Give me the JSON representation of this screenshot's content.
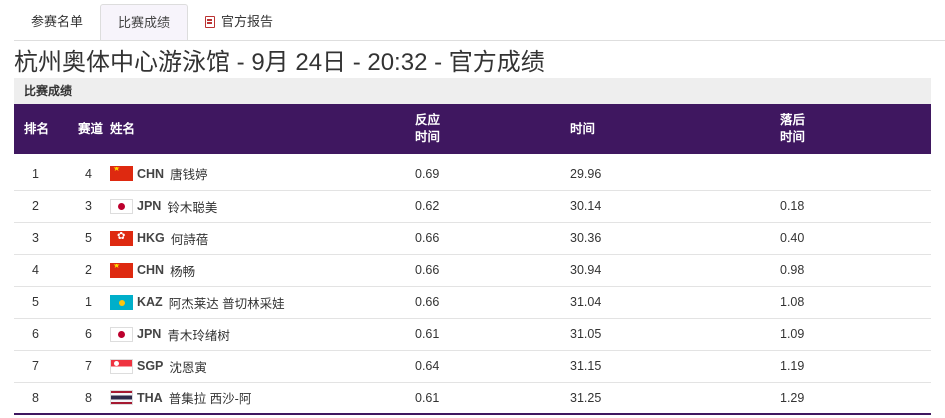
{
  "tabs": [
    {
      "label": "参赛名单",
      "active": false
    },
    {
      "label": "比赛成绩",
      "active": true
    },
    {
      "label": "官方报告",
      "active": false,
      "icon": "document-icon"
    }
  ],
  "page_title": "杭州奥体中心游泳馆 - 9月 24日 - 20:32 - 官方成绩",
  "section_label": "比赛成绩",
  "table": {
    "headers": {
      "rank": "排名",
      "lane": "赛道",
      "name": "姓名",
      "reaction_line1": "反应",
      "reaction_line2": "时间",
      "time": "时间",
      "behind_line1": "落后",
      "behind_line2": "时间"
    },
    "rows": [
      {
        "rank": "1",
        "lane": "4",
        "noc": "CHN",
        "name": "唐钱婷",
        "reaction": "0.69",
        "time": "29.96",
        "behind": ""
      },
      {
        "rank": "2",
        "lane": "3",
        "noc": "JPN",
        "name": "铃木聪美",
        "reaction": "0.62",
        "time": "30.14",
        "behind": "0.18"
      },
      {
        "rank": "3",
        "lane": "5",
        "noc": "HKG",
        "name": "何詩蓓",
        "reaction": "0.66",
        "time": "30.36",
        "behind": "0.40"
      },
      {
        "rank": "4",
        "lane": "2",
        "noc": "CHN",
        "name": "杨畅",
        "reaction": "0.66",
        "time": "30.94",
        "behind": "0.98"
      },
      {
        "rank": "5",
        "lane": "1",
        "noc": "KAZ",
        "name": "阿杰莱达 普切林采娃",
        "reaction": "0.66",
        "time": "31.04",
        "behind": "1.08"
      },
      {
        "rank": "6",
        "lane": "6",
        "noc": "JPN",
        "name": "青木玲绪树",
        "reaction": "0.61",
        "time": "31.05",
        "behind": "1.09"
      },
      {
        "rank": "7",
        "lane": "7",
        "noc": "SGP",
        "name": "沈恩寅",
        "reaction": "0.64",
        "time": "31.15",
        "behind": "1.19"
      },
      {
        "rank": "8",
        "lane": "8",
        "noc": "THA",
        "name": "普集拉 西沙-阿",
        "reaction": "0.61",
        "time": "31.25",
        "behind": "1.29"
      }
    ]
  },
  "colors": {
    "header_bg": "#3f1760",
    "section_bg": "#eeeeee",
    "report_icon": "#b33333"
  }
}
